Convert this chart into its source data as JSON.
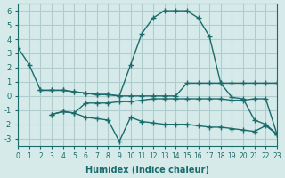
{
  "xlabel": "Humidex (Indice chaleur)",
  "bg_color": "#d6eaea",
  "grid_color": "#b0cccc",
  "line_color": "#1a6b6b",
  "xlim": [
    0,
    23
  ],
  "ylim": [
    -3.5,
    6.5
  ],
  "xticks": [
    0,
    1,
    2,
    3,
    4,
    5,
    6,
    7,
    8,
    9,
    10,
    11,
    12,
    13,
    14,
    15,
    16,
    17,
    18,
    19,
    20,
    21,
    22,
    23
  ],
  "yticks": [
    -3,
    -2,
    -1,
    0,
    1,
    2,
    3,
    4,
    5,
    6
  ],
  "series": [
    {
      "x": [
        0,
        1,
        2,
        3,
        4,
        5,
        6,
        7,
        8,
        9,
        10,
        11,
        12,
        13,
        14,
        15,
        16,
        17,
        18,
        19,
        20,
        21,
        22,
        23
      ],
      "y": [
        3.4,
        2.2,
        0.4,
        0.4,
        0.4,
        0.3,
        0.2,
        0.1,
        0.1,
        0.0,
        2.2,
        4.4,
        5.5,
        6.0,
        6.0,
        6.0,
        5.5,
        4.2,
        0.9,
        -0.1,
        -0.2,
        -1.7,
        -2.0,
        -2.7
      ]
    },
    {
      "x": [
        3,
        4,
        5,
        6,
        7,
        8,
        9,
        10,
        11,
        12,
        13,
        14,
        15,
        16,
        17,
        18,
        19,
        20,
        21,
        22,
        23
      ],
      "y": [
        -1.3,
        -1.1,
        -1.2,
        -1.5,
        -1.6,
        -1.7,
        -3.2,
        -1.5,
        -1.8,
        -1.9,
        -2.0,
        -2.0,
        -2.0,
        -2.1,
        -2.2,
        -2.2,
        -2.3,
        -2.4,
        -2.5,
        -2.1,
        -2.7
      ]
    },
    {
      "x": [
        3,
        4,
        5,
        6,
        7,
        8,
        9,
        10,
        11,
        12,
        13,
        14,
        15,
        16,
        17,
        18,
        19,
        20,
        21,
        22,
        23
      ],
      "y": [
        -1.3,
        -1.1,
        -1.2,
        -0.5,
        -0.5,
        -0.5,
        -0.4,
        -0.4,
        -0.3,
        -0.2,
        -0.2,
        -0.2,
        -0.2,
        -0.2,
        -0.2,
        -0.2,
        -0.3,
        -0.3,
        -0.2,
        -0.2,
        -2.7
      ]
    },
    {
      "x": [
        2,
        3,
        4,
        5,
        6,
        7,
        8,
        9,
        10,
        11,
        12,
        13,
        14,
        15,
        16,
        17,
        18,
        19,
        20,
        21,
        22,
        23
      ],
      "y": [
        0.4,
        0.4,
        0.4,
        0.3,
        0.2,
        0.1,
        0.1,
        0.0,
        0.0,
        0.0,
        0.0,
        0.0,
        0.0,
        0.9,
        0.9,
        0.9,
        0.9,
        0.9,
        0.9,
        0.9,
        0.9,
        0.9
      ]
    }
  ]
}
